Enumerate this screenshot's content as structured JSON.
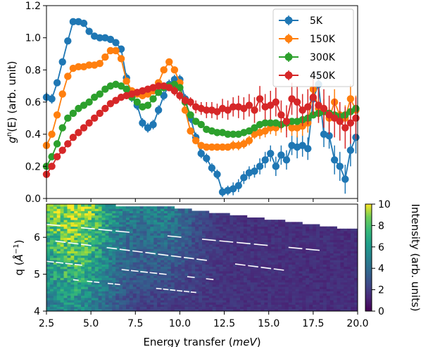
{
  "chart_data": [
    {
      "type": "line",
      "xlabel": "",
      "ylabel_parts": [
        "g",
        "n",
        "(E) (arb. unit)"
      ],
      "xlim": [
        2.5,
        20.0
      ],
      "ylim": [
        0.0,
        1.2
      ],
      "yticks": [
        "0.0",
        "0.2",
        "0.4",
        "0.6",
        "0.8",
        "1.0",
        "1.2"
      ],
      "legend_position": "top-right",
      "series": [
        {
          "name": "5K",
          "color": "#1f77b4",
          "x": [
            2.5,
            2.8,
            3.1,
            3.4,
            3.7,
            4.0,
            4.3,
            4.6,
            4.9,
            5.2,
            5.5,
            5.8,
            6.1,
            6.4,
            6.7,
            7.0,
            7.3,
            7.6,
            7.9,
            8.2,
            8.5,
            8.8,
            9.1,
            9.4,
            9.7,
            10.0,
            10.3,
            10.6,
            10.9,
            11.2,
            11.5,
            11.8,
            12.1,
            12.4,
            12.7,
            13.0,
            13.3,
            13.6,
            13.9,
            14.2,
            14.5,
            14.8,
            15.1,
            15.4,
            15.7,
            16.0,
            16.3,
            16.6,
            16.9,
            17.2,
            17.5,
            17.8,
            18.1,
            18.4,
            18.7,
            19.0,
            19.3,
            19.6,
            19.9
          ],
          "y": [
            0.63,
            0.62,
            0.72,
            0.85,
            0.98,
            1.1,
            1.1,
            1.09,
            1.04,
            1.01,
            1.0,
            1.0,
            0.99,
            0.97,
            0.93,
            0.75,
            0.63,
            0.58,
            0.47,
            0.44,
            0.46,
            0.55,
            0.64,
            0.71,
            0.74,
            0.74,
            0.62,
            0.5,
            0.38,
            0.28,
            0.25,
            0.19,
            0.15,
            0.04,
            0.05,
            0.06,
            0.08,
            0.13,
            0.16,
            0.17,
            0.2,
            0.24,
            0.28,
            0.2,
            0.27,
            0.24,
            0.33,
            0.32,
            0.33,
            0.31,
            0.62,
            0.71,
            0.4,
            0.39,
            0.24,
            0.2,
            0.12,
            0.3,
            0.38
          ],
          "err": [
            0.03,
            0.03,
            0.02,
            0.02,
            0.02,
            0.02,
            0.02,
            0.02,
            0.02,
            0.02,
            0.02,
            0.02,
            0.02,
            0.02,
            0.02,
            0.03,
            0.03,
            0.03,
            0.03,
            0.03,
            0.03,
            0.03,
            0.03,
            0.03,
            0.03,
            0.03,
            0.03,
            0.03,
            0.03,
            0.03,
            0.03,
            0.03,
            0.03,
            0.03,
            0.03,
            0.04,
            0.04,
            0.04,
            0.04,
            0.04,
            0.05,
            0.05,
            0.05,
            0.06,
            0.06,
            0.06,
            0.06,
            0.07,
            0.07,
            0.07,
            0.08,
            0.08,
            0.08,
            0.08,
            0.09,
            0.09,
            0.09,
            0.1,
            0.1
          ]
        },
        {
          "name": "150K",
          "color": "#ff7f0e",
          "x": [
            2.5,
            2.8,
            3.1,
            3.4,
            3.7,
            4.0,
            4.3,
            4.6,
            4.9,
            5.2,
            5.5,
            5.8,
            6.1,
            6.4,
            6.7,
            7.0,
            7.3,
            7.6,
            7.9,
            8.2,
            8.5,
            8.8,
            9.1,
            9.4,
            9.7,
            10.0,
            10.3,
            10.6,
            10.9,
            11.2,
            11.5,
            11.8,
            12.1,
            12.4,
            12.7,
            13.0,
            13.3,
            13.6,
            13.9,
            14.2,
            14.5,
            14.8,
            15.1,
            15.4,
            15.7,
            16.0,
            16.3,
            16.6,
            16.9,
            17.2,
            17.5,
            17.8,
            18.1,
            18.4,
            18.7,
            19.0,
            19.3,
            19.6,
            19.9
          ],
          "y": [
            0.33,
            0.4,
            0.52,
            0.65,
            0.76,
            0.81,
            0.82,
            0.82,
            0.83,
            0.83,
            0.84,
            0.88,
            0.92,
            0.92,
            0.87,
            0.73,
            0.67,
            0.65,
            0.64,
            0.65,
            0.67,
            0.72,
            0.8,
            0.85,
            0.8,
            0.72,
            0.55,
            0.42,
            0.36,
            0.33,
            0.32,
            0.32,
            0.32,
            0.32,
            0.32,
            0.33,
            0.33,
            0.34,
            0.36,
            0.4,
            0.41,
            0.42,
            0.44,
            0.44,
            0.46,
            0.47,
            0.44,
            0.44,
            0.45,
            0.47,
            0.68,
            0.56,
            0.55,
            0.5,
            0.6,
            0.52,
            0.5,
            0.62,
            0.55
          ],
          "err": [
            0.02,
            0.02,
            0.02,
            0.02,
            0.02,
            0.02,
            0.02,
            0.02,
            0.02,
            0.02,
            0.02,
            0.02,
            0.02,
            0.02,
            0.02,
            0.02,
            0.02,
            0.02,
            0.02,
            0.02,
            0.02,
            0.02,
            0.02,
            0.02,
            0.02,
            0.02,
            0.02,
            0.02,
            0.02,
            0.02,
            0.02,
            0.02,
            0.02,
            0.02,
            0.02,
            0.03,
            0.03,
            0.03,
            0.03,
            0.03,
            0.04,
            0.04,
            0.04,
            0.05,
            0.05,
            0.05,
            0.05,
            0.06,
            0.06,
            0.06,
            0.07,
            0.07,
            0.07,
            0.07,
            0.08,
            0.08,
            0.08,
            0.09,
            0.09
          ]
        },
        {
          "name": "300K",
          "color": "#2ca02c",
          "x": [
            2.5,
            2.8,
            3.1,
            3.4,
            3.7,
            4.0,
            4.3,
            4.6,
            4.9,
            5.2,
            5.5,
            5.8,
            6.1,
            6.4,
            6.7,
            7.0,
            7.3,
            7.6,
            7.9,
            8.2,
            8.5,
            8.8,
            9.1,
            9.4,
            9.7,
            10.0,
            10.3,
            10.6,
            10.9,
            11.2,
            11.5,
            11.8,
            12.1,
            12.4,
            12.7,
            13.0,
            13.3,
            13.6,
            13.9,
            14.2,
            14.5,
            14.8,
            15.1,
            15.4,
            15.7,
            16.0,
            16.3,
            16.6,
            16.9,
            17.2,
            17.5,
            17.8,
            18.1,
            18.4,
            18.7,
            19.0,
            19.3,
            19.6,
            19.9
          ],
          "y": [
            0.2,
            0.26,
            0.34,
            0.44,
            0.5,
            0.53,
            0.56,
            0.58,
            0.6,
            0.63,
            0.65,
            0.68,
            0.7,
            0.71,
            0.7,
            0.68,
            0.63,
            0.6,
            0.57,
            0.58,
            0.62,
            0.66,
            0.69,
            0.7,
            0.71,
            0.69,
            0.6,
            0.52,
            0.48,
            0.46,
            0.43,
            0.42,
            0.41,
            0.41,
            0.4,
            0.4,
            0.4,
            0.41,
            0.42,
            0.44,
            0.46,
            0.47,
            0.47,
            0.47,
            0.46,
            0.47,
            0.48,
            0.48,
            0.49,
            0.5,
            0.52,
            0.53,
            0.54,
            0.53,
            0.52,
            0.51,
            0.52,
            0.54,
            0.56
          ],
          "err": [
            0.02,
            0.02,
            0.02,
            0.02,
            0.02,
            0.02,
            0.02,
            0.02,
            0.02,
            0.02,
            0.02,
            0.02,
            0.02,
            0.02,
            0.02,
            0.02,
            0.02,
            0.02,
            0.02,
            0.02,
            0.02,
            0.02,
            0.02,
            0.02,
            0.02,
            0.02,
            0.02,
            0.02,
            0.02,
            0.02,
            0.02,
            0.02,
            0.02,
            0.02,
            0.02,
            0.02,
            0.02,
            0.02,
            0.02,
            0.02,
            0.02,
            0.02,
            0.02,
            0.02,
            0.02,
            0.02,
            0.02,
            0.02,
            0.02,
            0.02,
            0.02,
            0.02,
            0.02,
            0.02,
            0.02,
            0.02,
            0.02,
            0.02,
            0.02
          ]
        },
        {
          "name": "450K",
          "color": "#d62728",
          "x": [
            2.5,
            2.8,
            3.1,
            3.4,
            3.7,
            4.0,
            4.3,
            4.6,
            4.9,
            5.2,
            5.5,
            5.8,
            6.1,
            6.4,
            6.7,
            7.0,
            7.3,
            7.6,
            7.9,
            8.2,
            8.5,
            8.8,
            9.1,
            9.4,
            9.7,
            10.0,
            10.3,
            10.6,
            10.9,
            11.2,
            11.5,
            11.8,
            12.1,
            12.4,
            12.7,
            13.0,
            13.3,
            13.6,
            13.9,
            14.2,
            14.5,
            14.8,
            15.1,
            15.4,
            15.7,
            16.0,
            16.3,
            16.6,
            16.9,
            17.2,
            17.5,
            17.8,
            18.1,
            18.4,
            18.7,
            19.0,
            19.3,
            19.6,
            19.9
          ],
          "y": [
            0.15,
            0.2,
            0.26,
            0.3,
            0.34,
            0.38,
            0.41,
            0.44,
            0.47,
            0.5,
            0.53,
            0.56,
            0.59,
            0.61,
            0.63,
            0.64,
            0.65,
            0.66,
            0.67,
            0.68,
            0.69,
            0.7,
            0.7,
            0.69,
            0.67,
            0.64,
            0.61,
            0.6,
            0.57,
            0.56,
            0.55,
            0.55,
            0.54,
            0.56,
            0.55,
            0.57,
            0.57,
            0.56,
            0.58,
            0.55,
            0.62,
            0.57,
            0.58,
            0.6,
            0.52,
            0.48,
            0.62,
            0.6,
            0.55,
            0.57,
            0.63,
            0.58,
            0.56,
            0.52,
            0.5,
            0.48,
            0.44,
            0.47,
            0.5
          ],
          "err": [
            0.02,
            0.02,
            0.02,
            0.02,
            0.02,
            0.02,
            0.02,
            0.02,
            0.02,
            0.02,
            0.02,
            0.02,
            0.02,
            0.02,
            0.02,
            0.02,
            0.02,
            0.02,
            0.02,
            0.02,
            0.02,
            0.02,
            0.02,
            0.02,
            0.03,
            0.03,
            0.03,
            0.03,
            0.04,
            0.04,
            0.05,
            0.05,
            0.05,
            0.06,
            0.06,
            0.06,
            0.07,
            0.07,
            0.07,
            0.08,
            0.08,
            0.08,
            0.09,
            0.09,
            0.09,
            0.1,
            0.1,
            0.1,
            0.1,
            0.11,
            0.11,
            0.11,
            0.12,
            0.12,
            0.12,
            0.12,
            0.13,
            0.13,
            0.13
          ]
        }
      ]
    },
    {
      "type": "heatmap",
      "xlabel_parts": [
        "Energy transfer (",
        "meV",
        ")"
      ],
      "ylabel_parts": [
        "q (",
        "Å",
        "−1",
        ")"
      ],
      "xlim": [
        2.5,
        20.0
      ],
      "ylim": [
        4.0,
        6.9
      ],
      "xticks": [
        "2.5",
        "5.0",
        "7.5",
        "10.0",
        "12.5",
        "15.0",
        "17.5",
        "20.0"
      ],
      "yticks": [
        "4",
        "5",
        "6"
      ],
      "colorbar": {
        "label": "Intensity (arb. units)",
        "range": [
          0,
          10
        ],
        "ticks": [
          "0",
          "2",
          "4",
          "6",
          "8",
          "10"
        ],
        "colormap": "viridis"
      },
      "coverage_upper_q": {
        "x": [
          2.5,
          9.0,
          20.0
        ],
        "q": [
          6.9,
          6.85,
          6.2
        ]
      },
      "intensity_model": "hotspot near 3.5-5 meV at q 6-6.8 (~9), decaying toward high energy (~1)"
    }
  ]
}
